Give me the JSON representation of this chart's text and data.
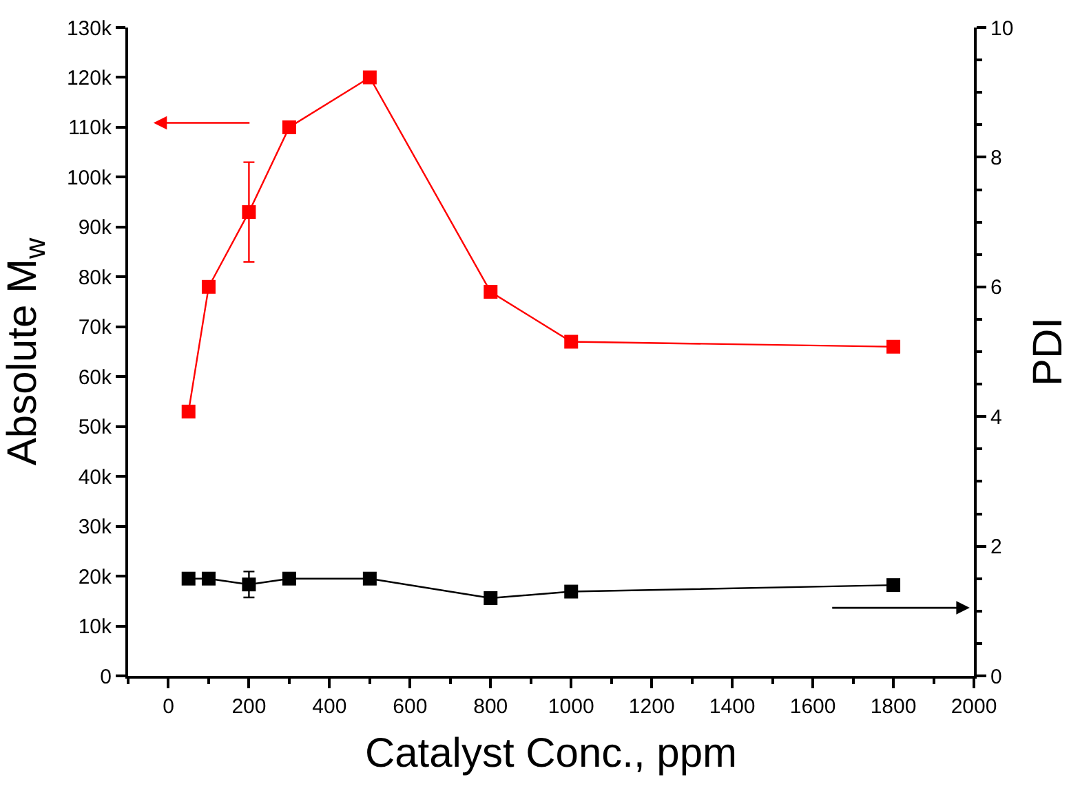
{
  "chart_data": {
    "type": "line",
    "xlabel": "Catalyst Conc., ppm",
    "ylabel": "Absolute M$_{w}$",
    "y2label": "PDI",
    "x": [
      50,
      100,
      200,
      300,
      500,
      800,
      1000,
      1800
    ],
    "series": [
      {
        "color": "#ff0000",
        "values": [
          53000,
          78000,
          93000,
          110000,
          120000,
          77000,
          67000,
          66000
        ],
        "errors": [
          null,
          null,
          10000,
          null,
          null,
          null,
          null,
          null
        ]
      },
      {
        "color": "#000000",
        "axis": "y2",
        "values": [
          1.5,
          1.5,
          1.41,
          1.5,
          1.5,
          1.2,
          1.3,
          1.4
        ],
        "errors": [
          null,
          null,
          0.2,
          null,
          null,
          null,
          null,
          null
        ]
      }
    ],
    "xlim": [
      -100,
      2000
    ],
    "xticks": [
      0,
      200,
      400,
      600,
      800,
      1000,
      1200,
      1400,
      1600,
      1800,
      2000
    ],
    "ylim": [
      0,
      130000
    ],
    "yticks": [
      {
        "value": 0,
        "label": "0"
      },
      {
        "value": 10000,
        "label": "10k"
      },
      {
        "value": 20000,
        "label": "20k"
      },
      {
        "value": 30000,
        "label": "30k"
      },
      {
        "value": 40000,
        "label": "40k"
      },
      {
        "value": 50000,
        "label": "50k"
      },
      {
        "value": 60000,
        "label": "60k"
      },
      {
        "value": 70000,
        "label": "70k"
      },
      {
        "value": 80000,
        "label": "80k"
      },
      {
        "value": 90000,
        "label": "90k"
      },
      {
        "value": 100000,
        "label": "100k"
      },
      {
        "value": 110000,
        "label": "110k"
      },
      {
        "value": 120000,
        "label": "120k"
      },
      {
        "value": 130000,
        "label": "130k"
      }
    ],
    "y2lim": [
      0,
      10
    ],
    "y2ticks": [
      0,
      2,
      4,
      6,
      8,
      10
    ],
    "marker": "square",
    "line_style": "solid"
  }
}
